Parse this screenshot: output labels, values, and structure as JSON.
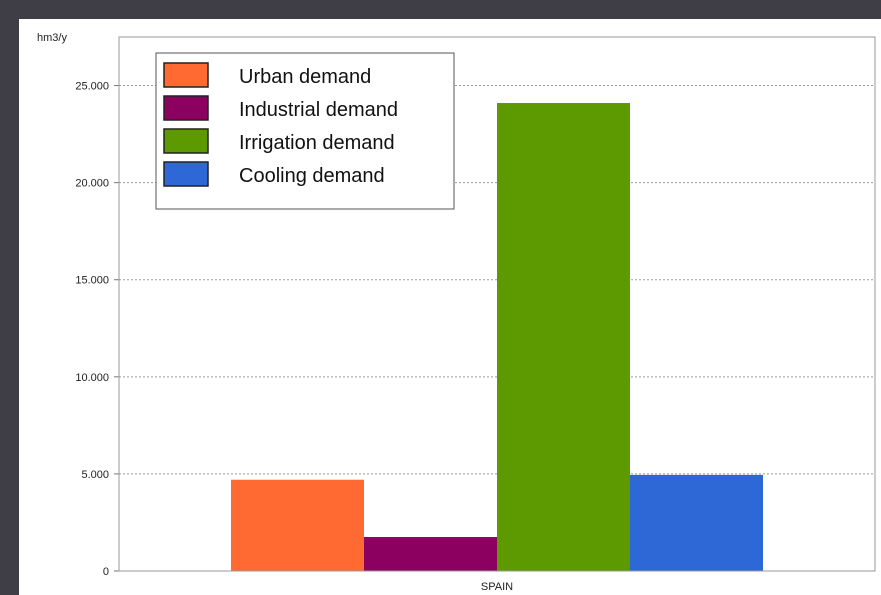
{
  "chart_data": {
    "type": "bar",
    "ylabel": "hm3/y",
    "xlabel": "",
    "categories": [
      "SPAIN"
    ],
    "ylim": [
      0,
      27500
    ],
    "yticks": [
      0,
      5000,
      10000,
      15000,
      20000,
      25000
    ],
    "ytick_labels": [
      "0",
      "5.000",
      "10.000",
      "15.000",
      "20.000",
      "25.000"
    ],
    "grid": true,
    "legend_position": "top-left",
    "series": [
      {
        "name": "Urban demand",
        "values": [
          4700
        ],
        "color": "#ff6a33"
      },
      {
        "name": "Industrial demand",
        "values": [
          1750
        ],
        "color": "#8c0060"
      },
      {
        "name": "Irrigation demand",
        "values": [
          24100
        ],
        "color": "#5d9900"
      },
      {
        "name": "Cooling demand",
        "values": [
          4950
        ],
        "color": "#2e67d6"
      }
    ]
  }
}
